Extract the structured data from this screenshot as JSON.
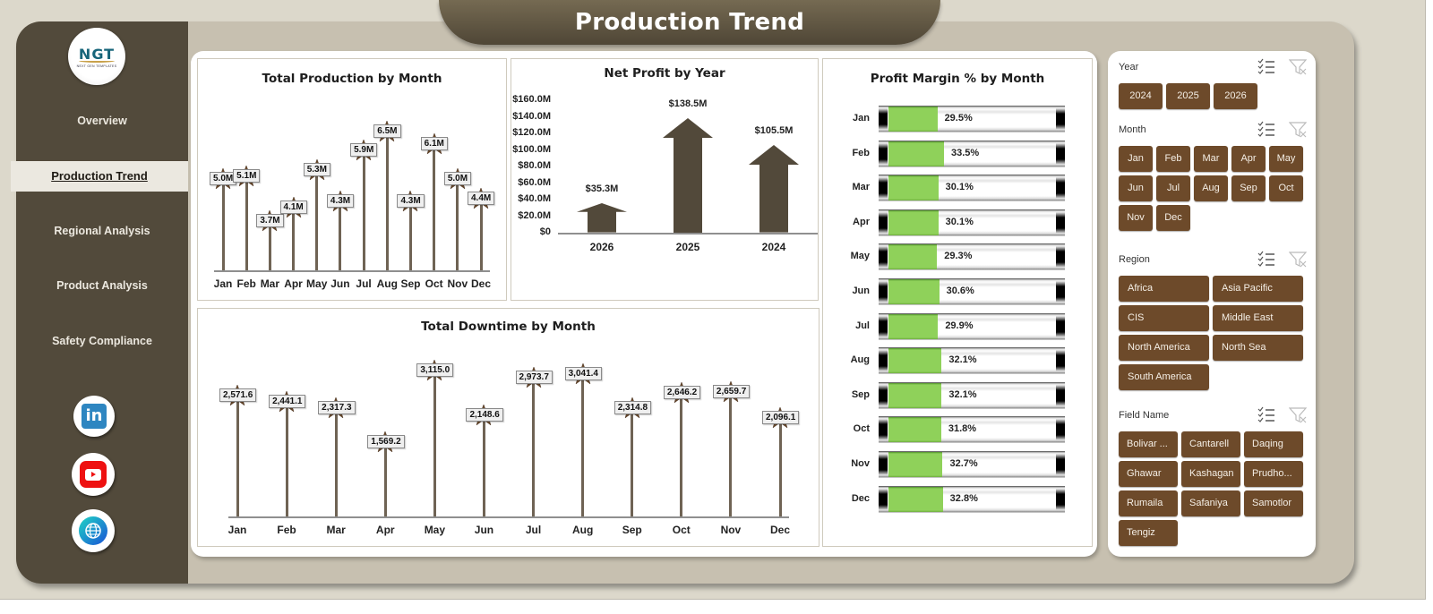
{
  "header": {
    "title": "Production Trend"
  },
  "logo": {
    "text": "NGT",
    "subtitle": "NEXT GEN TEMPLATES"
  },
  "sidebar": {
    "items": [
      {
        "label": "Overview",
        "active": false
      },
      {
        "label": "Production Trend",
        "active": true
      },
      {
        "label": "Regional Analysis",
        "active": false
      },
      {
        "label": "Product Analysis",
        "active": false
      },
      {
        "label": "Safety Compliance",
        "active": false
      }
    ],
    "social": [
      {
        "name": "linkedin-icon",
        "glyph": "in"
      },
      {
        "name": "youtube-icon"
      },
      {
        "name": "globe-icon"
      }
    ]
  },
  "colors": {
    "sidebar": "#524a3b",
    "accent_brown": "#6d4a2a",
    "stem": "#6f6354",
    "arrow": "#52493a",
    "green_fill": "#8fd15a",
    "background": "#dcd8cb"
  },
  "chart_data": [
    {
      "type": "lollipop",
      "title": "Total Production by Month",
      "categories": [
        "Jan",
        "Feb",
        "Mar",
        "Apr",
        "May",
        "Jun",
        "Jul",
        "Aug",
        "Sep",
        "Oct",
        "Nov",
        "Dec"
      ],
      "values": [
        5.0,
        5.1,
        3.7,
        4.1,
        5.3,
        4.3,
        5.9,
        6.5,
        4.3,
        6.1,
        5.0,
        4.4
      ],
      "labels": [
        "5.0M",
        "5.1M",
        "3.7M",
        "4.1M",
        "5.3M",
        "4.3M",
        "5.9M",
        "6.5M",
        "4.3M",
        "6.1M",
        "5.0M",
        "4.4M"
      ],
      "unit": "M",
      "xlabel": "",
      "ylabel": ""
    },
    {
      "type": "bar",
      "title": "Net Profit by Year",
      "categories": [
        "2026",
        "2025",
        "2024"
      ],
      "values": [
        35.3,
        138.5,
        105.5
      ],
      "labels": [
        "$35.3M",
        "$138.5M",
        "$105.5M"
      ],
      "y_ticks": [
        "$0",
        "$20.0M",
        "$40.0M",
        "$60.0M",
        "$80.0M",
        "$100.0M",
        "$120.0M",
        "$140.0M",
        "$160.0M"
      ],
      "ylim": [
        0,
        160
      ],
      "xlabel": "",
      "ylabel": ""
    },
    {
      "type": "bar",
      "orientation": "horizontal",
      "title": "Profit Margin % by Month",
      "categories": [
        "Jan",
        "Feb",
        "Mar",
        "Apr",
        "May",
        "Jun",
        "Jul",
        "Aug",
        "Sep",
        "Oct",
        "Nov",
        "Dec"
      ],
      "values": [
        29.5,
        33.5,
        30.1,
        30.1,
        29.3,
        30.6,
        29.9,
        32.1,
        32.1,
        31.8,
        32.7,
        32.8
      ],
      "labels": [
        "29.5%",
        "33.5%",
        "30.1%",
        "30.1%",
        "29.3%",
        "30.6%",
        "29.9%",
        "32.1%",
        "32.1%",
        "31.8%",
        "32.7%",
        "32.8%"
      ],
      "xlim": [
        0,
        100
      ]
    },
    {
      "type": "lollipop",
      "title": "Total Downtime by Month",
      "categories": [
        "Jan",
        "Feb",
        "Mar",
        "Apr",
        "May",
        "Jun",
        "Jul",
        "Aug",
        "Sep",
        "Oct",
        "Nov",
        "Dec"
      ],
      "values": [
        2571.6,
        2441.1,
        2317.3,
        1569.2,
        3115.0,
        2148.6,
        2973.7,
        3041.4,
        2314.8,
        2646.2,
        2659.7,
        2096.1
      ],
      "labels": [
        "2,571.6",
        "2,441.1",
        "2,317.3",
        "1,569.2",
        "3,115.0",
        "2,148.6",
        "2,973.7",
        "3,041.4",
        "2,314.8",
        "2,646.2",
        "2,659.7",
        "2,096.1"
      ]
    }
  ],
  "filters": {
    "year": {
      "title": "Year",
      "options": [
        "2024",
        "2025",
        "2026"
      ]
    },
    "month": {
      "title": "Month",
      "options": [
        "Jan",
        "Feb",
        "Mar",
        "Apr",
        "May",
        "Jun",
        "Jul",
        "Aug",
        "Sep",
        "Oct",
        "Nov",
        "Dec"
      ]
    },
    "region": {
      "title": "Region",
      "options": [
        "Africa",
        "Asia Pacific",
        "CIS",
        "Middle East",
        "North America",
        "North Sea",
        "South America"
      ]
    },
    "field": {
      "title": "Field Name",
      "options": [
        "Bolivar ...",
        "Cantarell",
        "Daqing",
        "Ghawar",
        "Kashagan",
        "Prudho...",
        "Rumaila",
        "Safaniya",
        "Samotlor",
        "Tengiz"
      ]
    }
  }
}
